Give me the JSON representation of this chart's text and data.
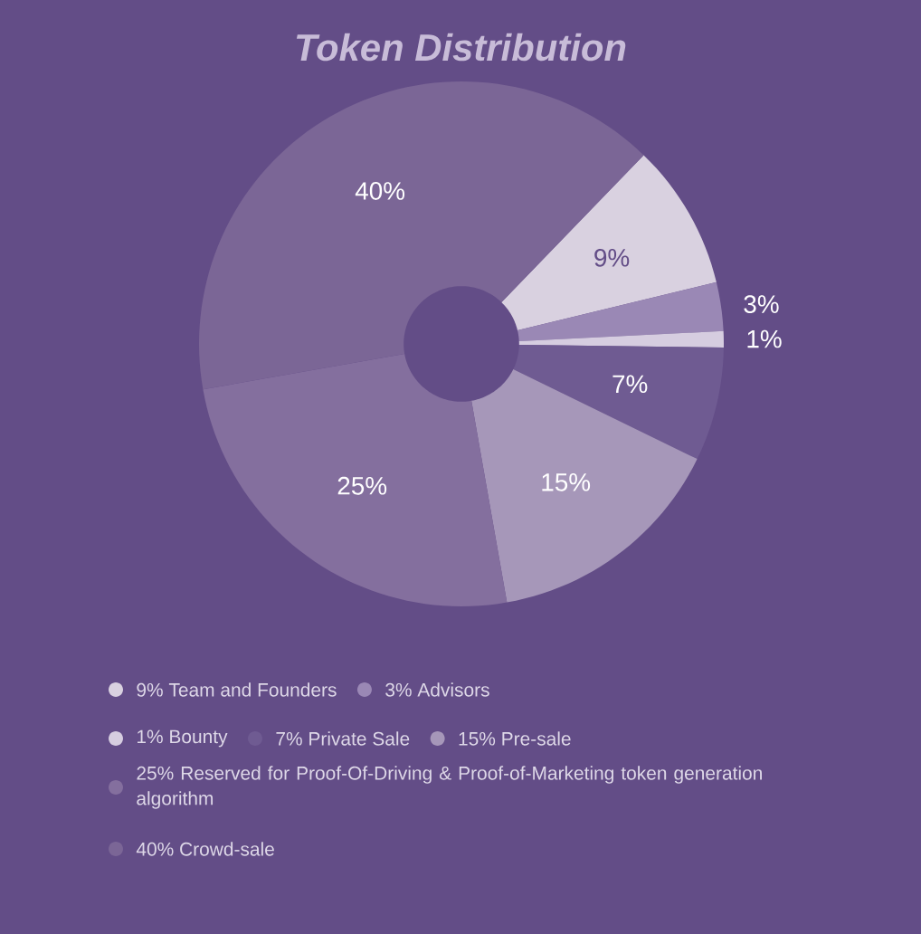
{
  "chart_data": {
    "type": "donut",
    "title": "Token Distribution",
    "categories": [
      "9% Team and Founders",
      "3% Advisors",
      "1% Bounty",
      "7% Private Sale",
      "15% Pre-sale",
      "25% Reserved for Proof-Of-Driving & Proof-of-Marketing token generation algorithm",
      "40% Crowd-sale"
    ],
    "values": [
      9,
      3,
      1,
      7,
      15,
      25,
      40
    ],
    "value_labels": [
      "9%",
      "3%",
      "1%",
      "7%",
      "15%",
      "25%",
      "40%"
    ],
    "colors": [
      "#d9d1e0",
      "#9a88b5",
      "#d6cde0",
      "#6f5b92",
      "#a697b9",
      "#846f9e",
      "#7b6696"
    ],
    "legend": "bottom"
  }
}
